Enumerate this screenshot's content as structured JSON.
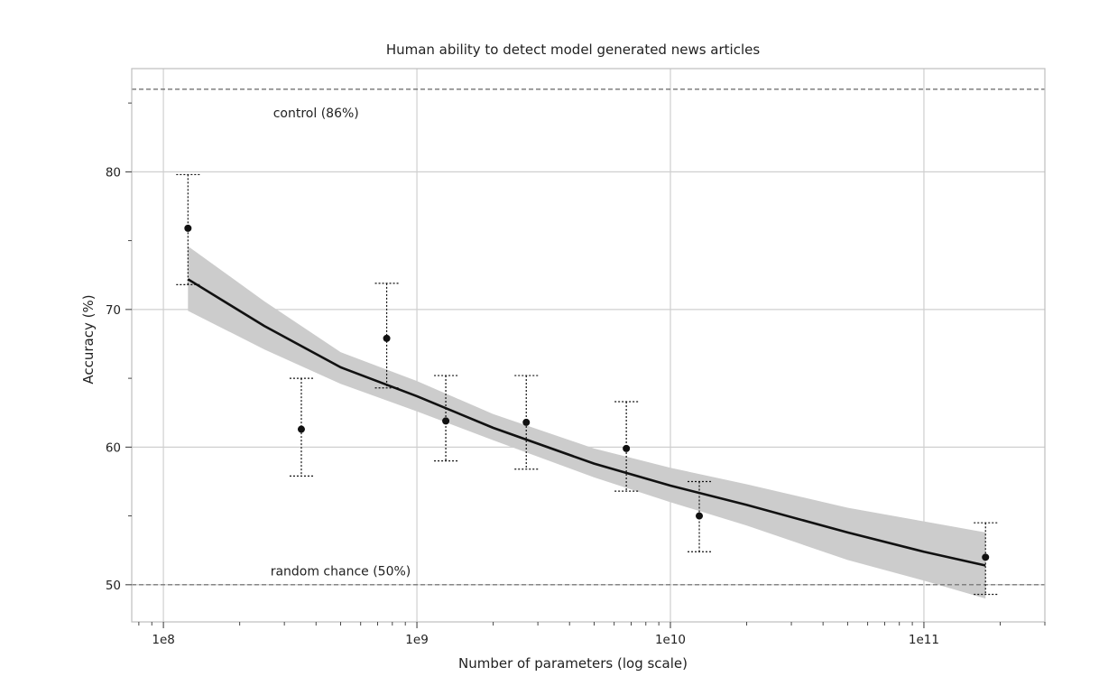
{
  "chart_data": {
    "type": "scatter",
    "title": "Human ability to detect model generated news articles",
    "xlabel": "Number of parameters (log scale)",
    "ylabel": "Accuracy (%)",
    "x_scale": "log",
    "xlim": [
      75000000.0,
      300000000000.0
    ],
    "ylim": [
      47.3,
      87.5
    ],
    "x_ticks": [
      {
        "value": 100000000.0,
        "label": "1e8"
      },
      {
        "value": 1000000000.0,
        "label": "1e9"
      },
      {
        "value": 10000000000.0,
        "label": "1e10"
      },
      {
        "value": 100000000000.0,
        "label": "1e11"
      }
    ],
    "y_ticks": [
      {
        "value": 50,
        "label": "50"
      },
      {
        "value": 60,
        "label": "60"
      },
      {
        "value": 70,
        "label": "70"
      },
      {
        "value": 80,
        "label": "80"
      }
    ],
    "grid": true,
    "reference_lines": [
      {
        "y": 86,
        "label": "control (86%)",
        "label_x": 400000000.0,
        "label_y": 84.3
      },
      {
        "y": 50,
        "label": "random chance (50%)",
        "label_x": 500000000.0,
        "label_y": 51.0
      }
    ],
    "points": [
      {
        "x": 125000000.0,
        "y": 75.9,
        "err_low": 71.8,
        "err_high": 79.8
      },
      {
        "x": 350000000.0,
        "y": 61.3,
        "err_low": 57.9,
        "err_high": 65.0
      },
      {
        "x": 760000000.0,
        "y": 67.9,
        "err_low": 64.3,
        "err_high": 71.9
      },
      {
        "x": 1300000000.0,
        "y": 61.9,
        "err_low": 59.0,
        "err_high": 65.2
      },
      {
        "x": 2700000000.0,
        "y": 61.8,
        "err_low": 58.4,
        "err_high": 65.2
      },
      {
        "x": 6700000000.0,
        "y": 59.9,
        "err_low": 56.8,
        "err_high": 63.3
      },
      {
        "x": 13000000000.0,
        "y": 55.0,
        "err_low": 52.4,
        "err_high": 57.5
      },
      {
        "x": 175000000000.0,
        "y": 52.0,
        "err_low": 49.3,
        "err_high": 54.5
      }
    ],
    "fit_curve": {
      "x": [
        125000000.0,
        250000000.0,
        500000000.0,
        1000000000.0,
        2000000000.0,
        5000000000.0,
        10000000000.0,
        20000000000.0,
        50000000000.0,
        100000000000.0,
        175000000000.0
      ],
      "y": [
        72.2,
        68.8,
        65.8,
        63.7,
        61.4,
        58.8,
        57.2,
        55.8,
        53.8,
        52.4,
        51.4
      ],
      "band_low": [
        69.9,
        67.1,
        64.6,
        62.6,
        60.5,
        57.8,
        56.0,
        54.3,
        51.8,
        50.3,
        49.0
      ],
      "band_high": [
        74.6,
        70.6,
        66.9,
        64.8,
        62.4,
        59.9,
        58.5,
        57.3,
        55.6,
        54.6,
        53.8
      ]
    },
    "colors": {
      "point": "#111111",
      "fit_line": "#111111",
      "band": "#cccccc",
      "grid": "#cfcfcf",
      "reference_line": "#666666",
      "frame": "#bdbdbd"
    }
  }
}
